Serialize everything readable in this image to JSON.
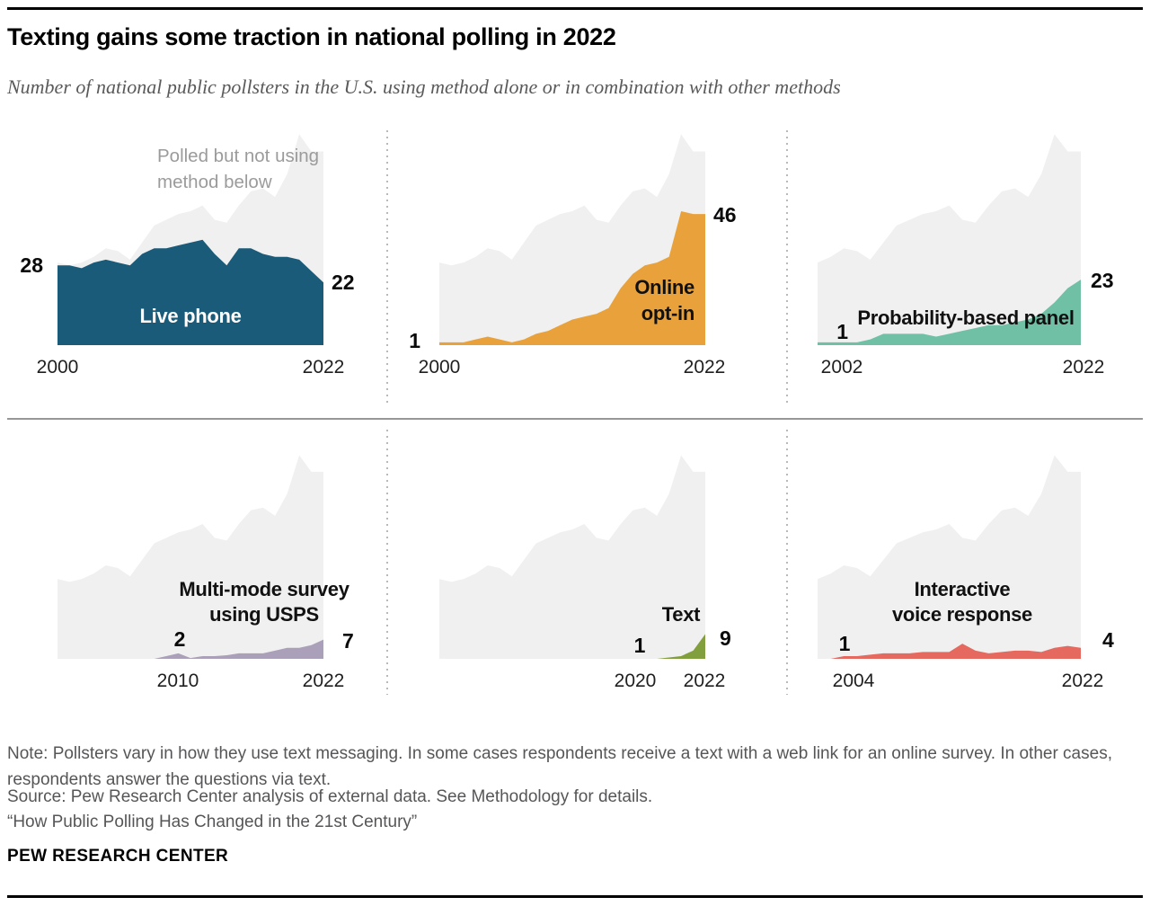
{
  "header": {
    "title": "Texting gains some traction in national polling in 2022",
    "subtitle": "Number of national public pollsters in the U.S. using method alone or in combination with other methods"
  },
  "chart_data": {
    "type": "area",
    "layout": "small multiples, 2 rows x 3 columns, shared gray total envelope",
    "x_range": [
      2000,
      2022
    ],
    "total_series": {
      "label_lines": [
        "Polled but not using",
        "method below"
      ],
      "color": "#F0F0F0",
      "start_year": 2000,
      "values": [
        29,
        28,
        29,
        31,
        34,
        33,
        30,
        36,
        42,
        44,
        46,
        47,
        49,
        44,
        43,
        49,
        54,
        55,
        52,
        60,
        74,
        68,
        68
      ]
    },
    "charts": [
      {
        "id": "live-phone",
        "title_lines": [
          "Live phone"
        ],
        "color": "#1B5B7A",
        "start_year": 2000,
        "values": [
          28,
          28,
          27,
          29,
          30,
          29,
          28,
          32,
          34,
          34,
          35,
          36,
          37,
          32,
          28,
          34,
          34,
          32,
          31,
          31,
          30,
          26,
          22
        ],
        "start_label": "28",
        "end_label": "22",
        "x_ticks": [
          "2000",
          "2022"
        ]
      },
      {
        "id": "online-opt-in",
        "title_lines": [
          "Online",
          "opt-in"
        ],
        "color": "#E9A23B",
        "start_year": 2000,
        "values": [
          1,
          1,
          1,
          2,
          3,
          2,
          1,
          2,
          4,
          5,
          7,
          9,
          10,
          11,
          13,
          20,
          25,
          28,
          29,
          31,
          47,
          46,
          46
        ],
        "start_label": "1",
        "end_label": "46",
        "x_ticks": [
          "2000",
          "2022"
        ]
      },
      {
        "id": "probability-based-panel",
        "title_lines": [
          "Probability-based panel"
        ],
        "color": "#6FC0A4",
        "start_year": 2002,
        "values": [
          1,
          1,
          1,
          1,
          2,
          4,
          4,
          4,
          4,
          3,
          4,
          5,
          6,
          7,
          7,
          8,
          9,
          11,
          15,
          20,
          23
        ],
        "start_label": "1",
        "end_label": "23",
        "x_ticks": [
          "2002",
          "2022"
        ]
      },
      {
        "id": "multi-mode-survey-using-usps",
        "title_lines": [
          "Multi-mode survey",
          "using USPS"
        ],
        "color": "#ABA0B9",
        "start_year": 2000,
        "values": [
          0,
          0,
          0,
          0,
          0,
          0,
          0,
          0,
          0,
          1,
          2,
          0.3,
          1,
          1,
          1.3,
          2,
          2,
          2,
          3,
          4,
          4,
          5,
          7
        ],
        "start_label": "2",
        "end_label": "7",
        "x_ticks": [
          "2010",
          "2022"
        ]
      },
      {
        "id": "text",
        "title_lines": [
          "Text"
        ],
        "color": "#819F3D",
        "start_year": 2000,
        "values": [
          0,
          0,
          0,
          0,
          0,
          0,
          0,
          0,
          0,
          0,
          0,
          0,
          0,
          0,
          0,
          0,
          0,
          0,
          0,
          0.5,
          1,
          3,
          9
        ],
        "start_label": "1",
        "end_label": "9",
        "x_ticks": [
          "2020",
          "2022"
        ]
      },
      {
        "id": "interactive-voice-response",
        "title_lines": [
          "Interactive",
          "voice response"
        ],
        "color": "#E5695F",
        "start_year": 2002,
        "values": [
          0,
          0,
          1,
          1,
          1.5,
          2,
          2,
          2,
          2.5,
          2.5,
          2.5,
          5.5,
          3,
          2,
          2.5,
          3,
          3,
          2.5,
          4,
          4.7,
          4
        ],
        "start_label": "1",
        "end_label": "4",
        "x_ticks": [
          "2004",
          "2022"
        ]
      }
    ]
  },
  "footer": {
    "note": "Note: Pollsters vary in how they use text messaging. In some cases respondents receive a text with a web link for an online survey. In other cases, respondents answer the questions via text.",
    "source": "Source: Pew Research Center analysis of external data. See Methodology for details.",
    "report_title": "“How Public Polling Has Changed in the 21st Century”",
    "brand": "PEW RESEARCH CENTER"
  }
}
